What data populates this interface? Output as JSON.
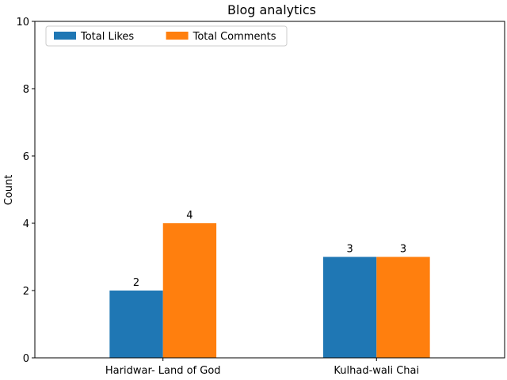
{
  "chart_data": {
    "type": "bar",
    "title": "Blog analytics",
    "xlabel": "",
    "ylabel": "Count",
    "categories": [
      "Haridwar- Land of God",
      "Kulhad-wali Chai"
    ],
    "series": [
      {
        "name": "Total Likes",
        "values": [
          2,
          3
        ],
        "color": "#1f77b4"
      },
      {
        "name": "Total Comments",
        "values": [
          4,
          3
        ],
        "color": "#ff7f0e"
      }
    ],
    "ylim": [
      0,
      10
    ],
    "yticks": [
      0,
      2,
      4,
      6,
      8,
      10
    ],
    "grid": false,
    "legend_position": "top-left"
  }
}
